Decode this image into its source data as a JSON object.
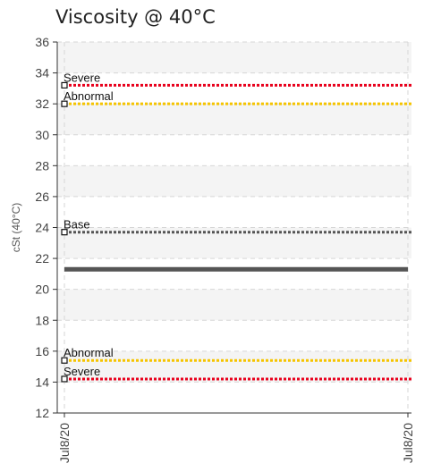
{
  "chart_data": {
    "type": "line",
    "title": "Viscosity @ 40°C",
    "ylabel": "cSt (40°C)",
    "xlabel": "",
    "ylim": [
      12,
      36
    ],
    "yticks": [
      12,
      14,
      16,
      18,
      20,
      22,
      24,
      26,
      28,
      30,
      32,
      34,
      36
    ],
    "x_tick_labels": [
      "Jul8/20",
      "Jul8/20"
    ],
    "grid": true,
    "limits": [
      {
        "name": "Severe",
        "value": 33.2,
        "color": "#e8001c",
        "label_position": "above"
      },
      {
        "name": "Abnormal",
        "value": 32.0,
        "color": "#f5c400",
        "label_position": "above"
      },
      {
        "name": "Base",
        "value": 23.7,
        "color": "#555555",
        "label_position": "above"
      },
      {
        "name": "Abnormal",
        "value": 15.4,
        "color": "#f5c400",
        "label_position": "above"
      },
      {
        "name": "Severe",
        "value": 14.2,
        "color": "#e8001c",
        "label_position": "above"
      }
    ],
    "series": [
      {
        "values": [
          21.3,
          21.3
        ],
        "color": "#555555"
      }
    ]
  }
}
